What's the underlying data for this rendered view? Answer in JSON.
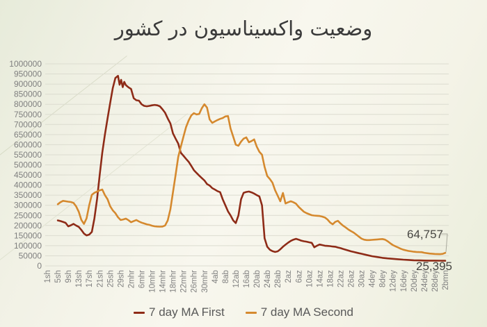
{
  "title": "وضعیت واکسیناسیون در کشور",
  "colors": {
    "series_first": "#8e2b17",
    "series_second": "#d5892e",
    "grid": "#dcdcd0",
    "axis_text": "#7f7f7f",
    "title_text": "#3a3a3a",
    "legend_text": "#595959",
    "annotation_text": "#474642",
    "leader_line": "#a8a89c",
    "background_edge": "#e7ebda",
    "background_center": "#f8f7ee"
  },
  "annotations": {
    "second_end": "64,757",
    "first_end": "25,395"
  },
  "legend": {
    "items": [
      {
        "label": "7 day MA First"
      },
      {
        "label": "7 day MA Second"
      }
    ]
  },
  "chart_data": {
    "type": "line",
    "title": "وضعیت واکسیناسیون در کشور",
    "xlabel": "",
    "ylabel": "",
    "ylim": [
      0,
      1000000
    ],
    "y_tick_step": 50000,
    "grid": "horizontal",
    "legend_position": "bottom",
    "x_domain_days": [
      0,
      152
    ],
    "y_tick_labels": [
      "1000000",
      "950000",
      "900000",
      "850000",
      "800000",
      "750000",
      "700000",
      "650000",
      "600000",
      "550000",
      "500000",
      "450000",
      "400000",
      "350000",
      "300000",
      "250000",
      "200000",
      "150000",
      "100000",
      "50000",
      "0"
    ],
    "x_tick_labels": [
      "1sh",
      "5sh",
      "9sh",
      "13sh",
      "17sh",
      "21sh",
      "25sh",
      "29sh",
      "2mhr",
      "6mhr",
      "10mhr",
      "14mhr",
      "18mhr",
      "22mhr",
      "26mhr",
      "30mhr",
      "4ab",
      "8ab",
      "12ab",
      "16ab",
      "20ab",
      "24ab",
      "28ab",
      "2az",
      "6az",
      "10az",
      "14az",
      "18az",
      "22az",
      "26az",
      "30az",
      "4dey",
      "8dey",
      "12dey",
      "16dey",
      "20dey",
      "24dey",
      "28dey",
      "2bmn"
    ],
    "series": [
      {
        "name": "7 day MA First",
        "color": "#8e2b17",
        "end_value": 25395,
        "end_label": "25,395",
        "points": [
          [
            4,
            225000
          ],
          [
            5,
            222000
          ],
          [
            6,
            218000
          ],
          [
            7,
            213000
          ],
          [
            8,
            196000
          ],
          [
            9,
            201000
          ],
          [
            10,
            208000
          ],
          [
            11,
            200000
          ],
          [
            12,
            193000
          ],
          [
            13,
            178000
          ],
          [
            14,
            160000
          ],
          [
            15,
            151000
          ],
          [
            16,
            155000
          ],
          [
            17,
            168000
          ],
          [
            18,
            235000
          ],
          [
            19,
            330000
          ],
          [
            20,
            450000
          ],
          [
            21,
            560000
          ],
          [
            22,
            650000
          ],
          [
            23,
            730000
          ],
          [
            24,
            805000
          ],
          [
            25,
            880000
          ],
          [
            26,
            930000
          ],
          [
            27,
            941000
          ],
          [
            27.6,
            897000
          ],
          [
            28.2,
            921000
          ],
          [
            28.8,
            885000
          ],
          [
            29.4,
            911000
          ],
          [
            30,
            895000
          ],
          [
            31,
            884000
          ],
          [
            32,
            876000
          ],
          [
            33,
            830000
          ],
          [
            34,
            820000
          ],
          [
            35,
            818000
          ],
          [
            36,
            800000
          ],
          [
            37,
            792000
          ],
          [
            38,
            790000
          ],
          [
            39,
            792000
          ],
          [
            40,
            795000
          ],
          [
            41,
            797000
          ],
          [
            42,
            795000
          ],
          [
            43,
            790000
          ],
          [
            44,
            775000
          ],
          [
            45,
            758000
          ],
          [
            46,
            730000
          ],
          [
            47,
            705000
          ],
          [
            48,
            656000
          ],
          [
            49,
            630000
          ],
          [
            50,
            605000
          ],
          [
            51,
            560000
          ],
          [
            52,
            545000
          ],
          [
            53,
            530000
          ],
          [
            54,
            515000
          ],
          [
            55,
            495000
          ],
          [
            56,
            474000
          ],
          [
            57,
            460000
          ],
          [
            58,
            447000
          ],
          [
            59,
            435000
          ],
          [
            60,
            423000
          ],
          [
            61,
            405000
          ],
          [
            62,
            398000
          ],
          [
            63,
            385000
          ],
          [
            64,
            378000
          ],
          [
            65,
            370000
          ],
          [
            66,
            365000
          ],
          [
            67,
            330000
          ],
          [
            68,
            300000
          ],
          [
            69,
            270000
          ],
          [
            70,
            250000
          ],
          [
            71,
            225000
          ],
          [
            72,
            212000
          ],
          [
            73,
            250000
          ],
          [
            74,
            330000
          ],
          [
            75,
            362000
          ],
          [
            76,
            366000
          ],
          [
            77,
            368000
          ],
          [
            78,
            364000
          ],
          [
            79,
            358000
          ],
          [
            80,
            350000
          ],
          [
            81,
            344000
          ],
          [
            82,
            300000
          ],
          [
            83,
            137000
          ],
          [
            84,
            95000
          ],
          [
            85,
            80000
          ],
          [
            86,
            73000
          ],
          [
            87,
            69000
          ],
          [
            88,
            72000
          ],
          [
            89,
            82000
          ],
          [
            90,
            95000
          ],
          [
            91,
            105000
          ],
          [
            92,
            115000
          ],
          [
            93,
            124000
          ],
          [
            94,
            130000
          ],
          [
            95,
            134000
          ],
          [
            96,
            130000
          ],
          [
            97,
            125000
          ],
          [
            98,
            122000
          ],
          [
            99,
            120000
          ],
          [
            100,
            117000
          ],
          [
            101,
            114000
          ],
          [
            102,
            92000
          ],
          [
            103,
            100000
          ],
          [
            104,
            106000
          ],
          [
            105,
            103000
          ],
          [
            106,
            100000
          ],
          [
            107,
            99000
          ],
          [
            108,
            98000
          ],
          [
            109,
            96000
          ],
          [
            110,
            95000
          ],
          [
            111,
            91000
          ],
          [
            112,
            88000
          ],
          [
            113,
            84000
          ],
          [
            114,
            80000
          ],
          [
            115,
            76000
          ],
          [
            116,
            72000
          ],
          [
            117,
            69000
          ],
          [
            118,
            66000
          ],
          [
            119,
            63000
          ],
          [
            120,
            60000
          ],
          [
            121,
            57000
          ],
          [
            122,
            54000
          ],
          [
            124,
            48000
          ],
          [
            126,
            44000
          ],
          [
            128,
            40000
          ],
          [
            130,
            37000
          ],
          [
            132,
            35000
          ],
          [
            134,
            33000
          ],
          [
            136,
            31000
          ],
          [
            138,
            29500
          ],
          [
            140,
            28000
          ],
          [
            142,
            27000
          ],
          [
            144,
            26500
          ],
          [
            146,
            26200
          ],
          [
            148,
            26000
          ],
          [
            150,
            25700
          ],
          [
            152,
            25395
          ]
        ]
      },
      {
        "name": "7 day MA Second",
        "color": "#d5892e",
        "end_value": 64757,
        "end_label": "64,757",
        "points": [
          [
            4,
            305000
          ],
          [
            5,
            315000
          ],
          [
            6,
            322000
          ],
          [
            7,
            320000
          ],
          [
            8,
            318000
          ],
          [
            9,
            316000
          ],
          [
            10,
            312000
          ],
          [
            11,
            295000
          ],
          [
            12,
            268000
          ],
          [
            13,
            228000
          ],
          [
            14,
            208000
          ],
          [
            15,
            235000
          ],
          [
            16,
            300000
          ],
          [
            17,
            352000
          ],
          [
            18,
            362000
          ],
          [
            19,
            368000
          ],
          [
            20,
            374000
          ],
          [
            21,
            378000
          ],
          [
            22,
            350000
          ],
          [
            23,
            330000
          ],
          [
            24,
            296000
          ],
          [
            25,
            275000
          ],
          [
            26,
            261000
          ],
          [
            27,
            241000
          ],
          [
            28,
            227000
          ],
          [
            29,
            230000
          ],
          [
            30,
            234000
          ],
          [
            31,
            226000
          ],
          [
            32,
            216000
          ],
          [
            33,
            222000
          ],
          [
            34,
            227000
          ],
          [
            35,
            220000
          ],
          [
            36,
            214000
          ],
          [
            37,
            210000
          ],
          [
            38,
            206000
          ],
          [
            39,
            203000
          ],
          [
            40,
            199000
          ],
          [
            41,
            196000
          ],
          [
            42,
            195000
          ],
          [
            43,
            194000
          ],
          [
            44,
            195000
          ],
          [
            45,
            200000
          ],
          [
            46,
            225000
          ],
          [
            47,
            280000
          ],
          [
            48,
            364000
          ],
          [
            49,
            450000
          ],
          [
            50,
            540000
          ],
          [
            51,
            590000
          ],
          [
            52,
            640000
          ],
          [
            53,
            687000
          ],
          [
            54,
            720000
          ],
          [
            55,
            745000
          ],
          [
            56,
            756000
          ],
          [
            57,
            750000
          ],
          [
            58,
            752000
          ],
          [
            59,
            780000
          ],
          [
            60,
            800000
          ],
          [
            61,
            783000
          ],
          [
            62,
            725000
          ],
          [
            63,
            708000
          ],
          [
            64,
            715000
          ],
          [
            65,
            722000
          ],
          [
            66,
            728000
          ],
          [
            67,
            732000
          ],
          [
            68,
            740000
          ],
          [
            69,
            742000
          ],
          [
            70,
            680000
          ],
          [
            71,
            640000
          ],
          [
            72,
            600000
          ],
          [
            73,
            595000
          ],
          [
            74,
            615000
          ],
          [
            75,
            630000
          ],
          [
            76,
            636000
          ],
          [
            77,
            612000
          ],
          [
            78,
            618000
          ],
          [
            79,
            626000
          ],
          [
            80,
            590000
          ],
          [
            81,
            565000
          ],
          [
            82,
            550000
          ],
          [
            83,
            490000
          ],
          [
            84,
            445000
          ],
          [
            85,
            430000
          ],
          [
            86,
            412000
          ],
          [
            87,
            375000
          ],
          [
            88,
            347000
          ],
          [
            89,
            320000
          ],
          [
            90,
            361000
          ],
          [
            91,
            309000
          ],
          [
            92,
            315000
          ],
          [
            93,
            320000
          ],
          [
            94,
            315000
          ],
          [
            95,
            308000
          ],
          [
            96,
            292000
          ],
          [
            97,
            280000
          ],
          [
            98,
            268000
          ],
          [
            99,
            261000
          ],
          [
            100,
            256000
          ],
          [
            101,
            251000
          ],
          [
            102,
            249000
          ],
          [
            103,
            248000
          ],
          [
            104,
            247000
          ],
          [
            105,
            244000
          ],
          [
            106,
            240000
          ],
          [
            107,
            230000
          ],
          [
            108,
            215000
          ],
          [
            109,
            206000
          ],
          [
            110,
            218000
          ],
          [
            111,
            223000
          ],
          [
            112,
            210000
          ],
          [
            113,
            199000
          ],
          [
            114,
            190000
          ],
          [
            115,
            180000
          ],
          [
            116,
            172000
          ],
          [
            117,
            165000
          ],
          [
            118,
            155000
          ],
          [
            119,
            145000
          ],
          [
            120,
            135000
          ],
          [
            121,
            130000
          ],
          [
            122,
            128000
          ],
          [
            123,
            128000
          ],
          [
            124,
            129000
          ],
          [
            125,
            130000
          ],
          [
            126,
            131000
          ],
          [
            127,
            132000
          ],
          [
            128,
            133000
          ],
          [
            129,
            130000
          ],
          [
            130,
            122000
          ],
          [
            131,
            112000
          ],
          [
            132,
            103000
          ],
          [
            133,
            97000
          ],
          [
            134,
            91000
          ],
          [
            135,
            85000
          ],
          [
            136,
            80000
          ],
          [
            137,
            77000
          ],
          [
            138,
            74000
          ],
          [
            139,
            72000
          ],
          [
            140,
            70000
          ],
          [
            141,
            69000
          ],
          [
            142,
            68500
          ],
          [
            143,
            68000
          ],
          [
            144,
            65000
          ],
          [
            146,
            61000
          ],
          [
            148,
            59000
          ],
          [
            150,
            58000
          ],
          [
            151,
            59500
          ],
          [
            152,
            64757
          ]
        ]
      }
    ]
  }
}
